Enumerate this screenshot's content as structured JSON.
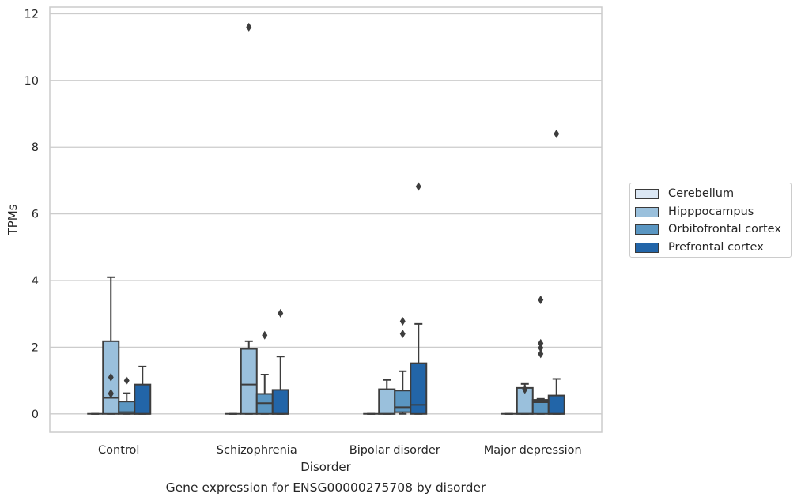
{
  "chart_data": {
    "type": "box",
    "title": "Gene expression for ENSG00000275708 by disorder",
    "xlabel": "Disorder",
    "ylabel": "TPMs",
    "ylim": [
      -0.55,
      12.2
    ],
    "yticks": [
      0,
      2,
      4,
      6,
      8,
      10,
      12
    ],
    "grid": true,
    "legend_position": "right",
    "categories": [
      "Control",
      "Schizophrenia",
      "Bipolar disorder",
      "Major depression"
    ],
    "series": [
      {
        "name": "Cerebellum",
        "color": "#dbe7f4",
        "boxes": [
          {
            "q1": 0,
            "median": 0,
            "q3": 0,
            "whislo": 0,
            "whishi": 0,
            "fliers": []
          },
          {
            "q1": 0,
            "median": 0,
            "q3": 0,
            "whislo": 0,
            "whishi": 0,
            "fliers": []
          },
          {
            "q1": 0,
            "median": 0,
            "q3": 0,
            "whislo": 0,
            "whishi": 0,
            "fliers": []
          },
          {
            "q1": 0,
            "median": 0,
            "q3": 0,
            "whislo": 0,
            "whishi": 0,
            "fliers": []
          }
        ]
      },
      {
        "name": "Hipppocampus",
        "color": "#9ac0dc",
        "boxes": [
          {
            "q1": 0,
            "median": 0.48,
            "q3": 2.18,
            "whislo": 0,
            "whishi": 4.1,
            "fliers": [
              0.6,
              0.62,
              1.1
            ]
          },
          {
            "q1": 0,
            "median": 0.88,
            "q3": 1.95,
            "whislo": 0,
            "whishi": 2.18,
            "fliers": [
              11.6
            ]
          },
          {
            "q1": 0,
            "median": 0,
            "q3": 0.74,
            "whislo": 0,
            "whishi": 1.02,
            "fliers": []
          },
          {
            "q1": 0,
            "median": 0,
            "q3": 0.78,
            "whislo": 0,
            "whishi": 0.9,
            "fliers": [
              0.73
            ]
          }
        ]
      },
      {
        "name": "Orbitofrontal cortex",
        "color": "#5a96c2",
        "boxes": [
          {
            "q1": 0,
            "median": 0.05,
            "q3": 0.37,
            "whislo": 0,
            "whishi": 0.62,
            "fliers": [
              1.0
            ]
          },
          {
            "q1": 0,
            "median": 0.32,
            "q3": 0.6,
            "whislo": 0,
            "whishi": 1.18,
            "fliers": [
              2.36
            ]
          },
          {
            "q1": 0.05,
            "median": 0.2,
            "q3": 0.7,
            "whislo": 0,
            "whishi": 1.28,
            "fliers": [
              2.4,
              2.78
            ]
          },
          {
            "q1": 0,
            "median": 0.35,
            "q3": 0.42,
            "whislo": 0,
            "whishi": 0.45,
            "fliers": [
              1.8,
              1.98,
              2.12,
              3.42
            ]
          }
        ]
      },
      {
        "name": "Prefrontal cortex",
        "color": "#2265a8",
        "boxes": [
          {
            "q1": 0,
            "median": 0,
            "q3": 0.88,
            "whislo": 0,
            "whishi": 1.42,
            "fliers": []
          },
          {
            "q1": 0,
            "median": 0,
            "q3": 0.72,
            "whislo": 0,
            "whishi": 1.72,
            "fliers": [
              3.02
            ]
          },
          {
            "q1": 0,
            "median": 0.27,
            "q3": 1.52,
            "whislo": 0,
            "whishi": 2.7,
            "fliers": [
              6.82
            ]
          },
          {
            "q1": 0,
            "median": 0,
            "q3": 0.55,
            "whislo": 0,
            "whishi": 1.05,
            "fliers": [
              8.4
            ]
          }
        ]
      }
    ]
  }
}
